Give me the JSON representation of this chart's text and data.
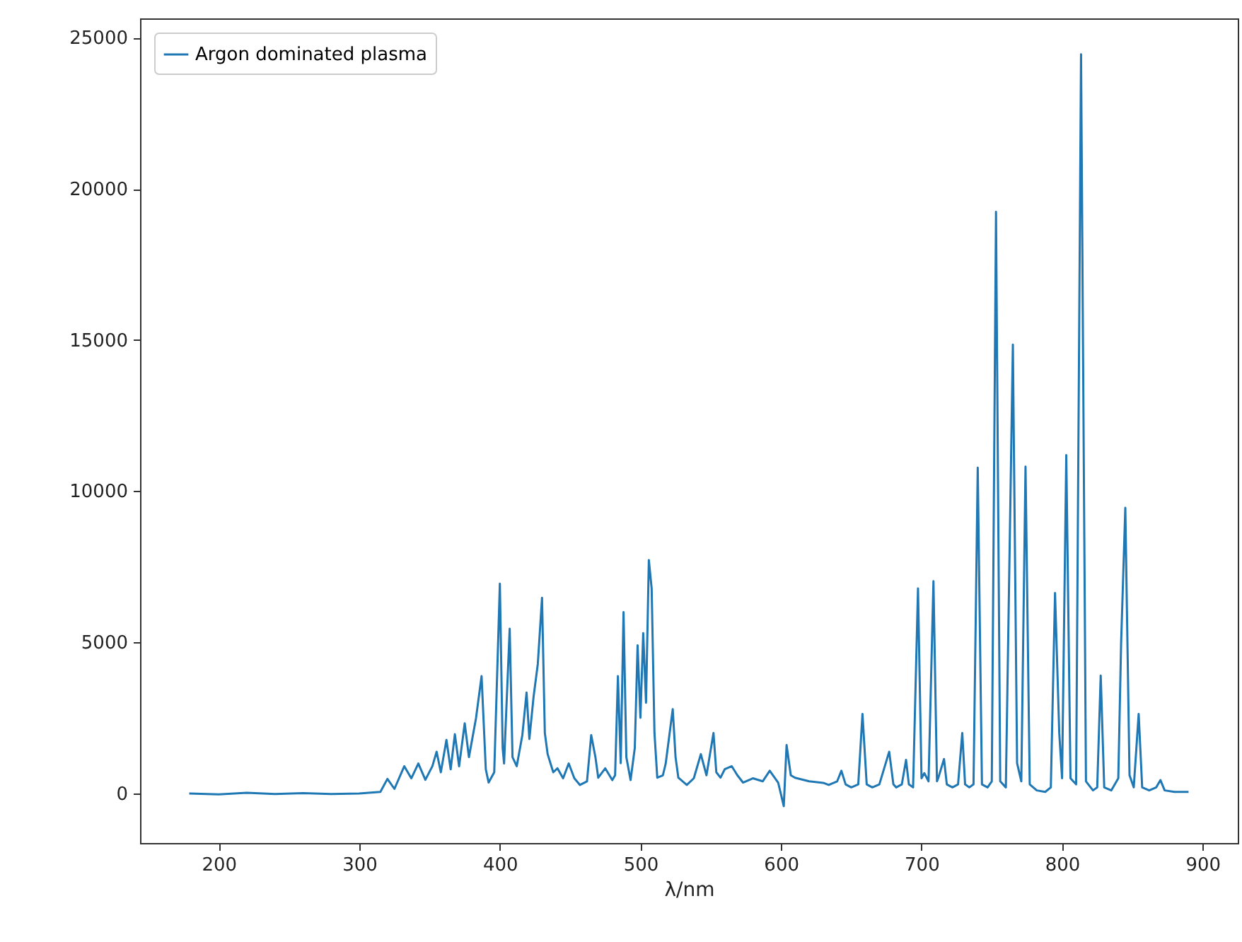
{
  "chart_data": {
    "type": "line",
    "xlabel": "λ/nm",
    "xlim": [
      144,
      925
    ],
    "ylim": [
      -1640,
      25640
    ],
    "xticks": [
      200,
      300,
      400,
      500,
      600,
      700,
      800,
      900
    ],
    "yticks": [
      0,
      5000,
      10000,
      15000,
      20000,
      25000
    ],
    "legend": "top left",
    "series": [
      {
        "name": "Argon dominated plasma",
        "color": "#1f77b4",
        "x": [
          179,
          200,
          220,
          240,
          260,
          280,
          300,
          315,
          320,
          325,
          332,
          337,
          342,
          347,
          352,
          355,
          358,
          362,
          365,
          368,
          371,
          375,
          378,
          383,
          387,
          390,
          392,
          396,
          400,
          402,
          403,
          407,
          409,
          412,
          416,
          419,
          421,
          424,
          427,
          430,
          432,
          434,
          438,
          441,
          445,
          449,
          453,
          457,
          462,
          465,
          468,
          470,
          475,
          480,
          482,
          484,
          486,
          488,
          490,
          493,
          496,
          498,
          500,
          502,
          504,
          506,
          508,
          510,
          512,
          516,
          518,
          523,
          525,
          527,
          533,
          538,
          543,
          547,
          552,
          554,
          557,
          560,
          565,
          569,
          573,
          580,
          587,
          592,
          598,
          602,
          604,
          607,
          610,
          620,
          630,
          634,
          640,
          643,
          646,
          650,
          655,
          658,
          661,
          665,
          670,
          677,
          680,
          682,
          686,
          689,
          691,
          694,
          697.5,
          700,
          702,
          705,
          708.5,
          711,
          712,
          716,
          718,
          722,
          726,
          729,
          731,
          734,
          737,
          740,
          743,
          747,
          750,
          753,
          756,
          760,
          765,
          768,
          771,
          774,
          777,
          782,
          788,
          792,
          795,
          798,
          800,
          803,
          806,
          810,
          813.5,
          817,
          822,
          825,
          827.5,
          830,
          835,
          840,
          842,
          845,
          848,
          851,
          854.5,
          857,
          862,
          867,
          870,
          873,
          880,
          890
        ],
        "values": [
          0,
          -30,
          20,
          -20,
          10,
          -20,
          0,
          50,
          480,
          150,
          900,
          500,
          990,
          450,
          900,
          1380,
          700,
          1770,
          800,
          1960,
          900,
          2320,
          1200,
          2480,
          3880,
          800,
          360,
          700,
          6940,
          1500,
          990,
          5450,
          1200,
          900,
          1930,
          3340,
          1800,
          3200,
          4280,
          6470,
          2000,
          1300,
          700,
          830,
          500,
          990,
          500,
          280,
          400,
          1930,
          1200,
          520,
          830,
          440,
          600,
          3880,
          1000,
          6000,
          1200,
          440,
          1500,
          4900,
          2500,
          5300,
          3000,
          7720,
          6780,
          2000,
          520,
          600,
          990,
          2790,
          1200,
          520,
          280,
          500,
          1300,
          600,
          2000,
          700,
          520,
          800,
          900,
          600,
          360,
          500,
          400,
          750,
          360,
          -420,
          1600,
          600,
          520,
          400,
          350,
          280,
          400,
          750,
          300,
          200,
          300,
          2630,
          300,
          200,
          300,
          1380,
          300,
          200,
          300,
          1110,
          300,
          200,
          6780,
          500,
          670,
          400,
          7020,
          400,
          520,
          1140,
          300,
          200,
          300,
          2000,
          300,
          200,
          300,
          10780,
          300,
          200,
          400,
          19240,
          400,
          200,
          14850,
          1000,
          400,
          10810,
          300,
          100,
          50,
          200,
          6630,
          2000,
          500,
          11190,
          500,
          300,
          24450,
          400,
          100,
          200,
          3900,
          200,
          100,
          500,
          4950,
          9450,
          600,
          200,
          2630,
          200,
          100,
          200,
          440,
          100,
          50,
          50
        ]
      }
    ]
  }
}
